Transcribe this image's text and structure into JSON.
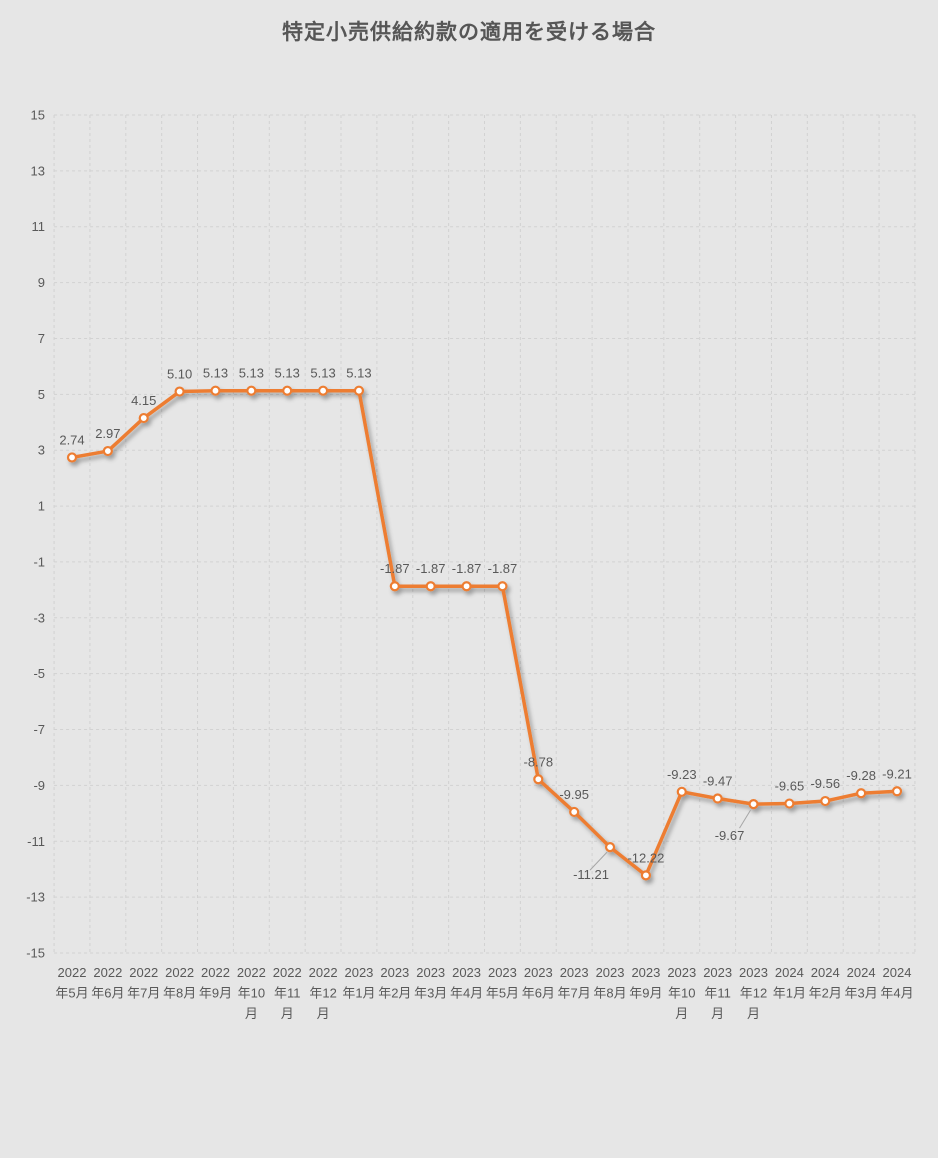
{
  "page": {
    "page_background": "#ffffff",
    "panel_background": "#e6e6e6"
  },
  "chart_data": {
    "type": "line",
    "title": "特定小売供給約款の適用を受ける場合",
    "categories": [
      "2022年5月",
      "2022年6月",
      "2022年7月",
      "2022年8月",
      "2022年9月",
      "2022年10月",
      "2022年11月",
      "2022年12月",
      "2023年1月",
      "2023年2月",
      "2023年3月",
      "2023年4月",
      "2023年5月",
      "2023年6月",
      "2023年7月",
      "2023年8月",
      "2023年9月",
      "2023年10月",
      "2023年11月",
      "2023年12月",
      "2024年1月",
      "2024年2月",
      "2024年3月",
      "2024年4月"
    ],
    "values": [
      2.74,
      2.97,
      4.15,
      5.1,
      5.13,
      5.13,
      5.13,
      5.13,
      5.13,
      -1.87,
      -1.87,
      -1.87,
      -1.87,
      -8.78,
      -9.95,
      -11.21,
      -12.22,
      -9.23,
      -9.47,
      -9.67,
      -9.65,
      -9.56,
      -9.28,
      -9.21
    ],
    "data_label_decimals": 2,
    "data_labels_visible": true,
    "label_placement_exceptions": [
      {
        "index": 15,
        "position": "below-left-with-leader"
      },
      {
        "index": 19,
        "position": "below-left-with-leader"
      }
    ],
    "xlabel": "",
    "ylabel": "",
    "ylim": [
      -15,
      15
    ],
    "yticks": [
      15,
      13,
      11,
      9,
      7,
      5,
      3,
      1,
      -1,
      -3,
      -5,
      -7,
      -9,
      -11,
      -13,
      -15
    ],
    "grid": true,
    "legend_position": "none",
    "colors": {
      "line": "#ED7D31",
      "marker_fill": "#FFFFFF",
      "marker_stroke": "#ED7D31",
      "text": "#595959",
      "title_text": "#565656",
      "gridline": "#d2d2d2",
      "leader_line": "#a6a6a6",
      "plot_background": "#e6e6e6"
    }
  }
}
